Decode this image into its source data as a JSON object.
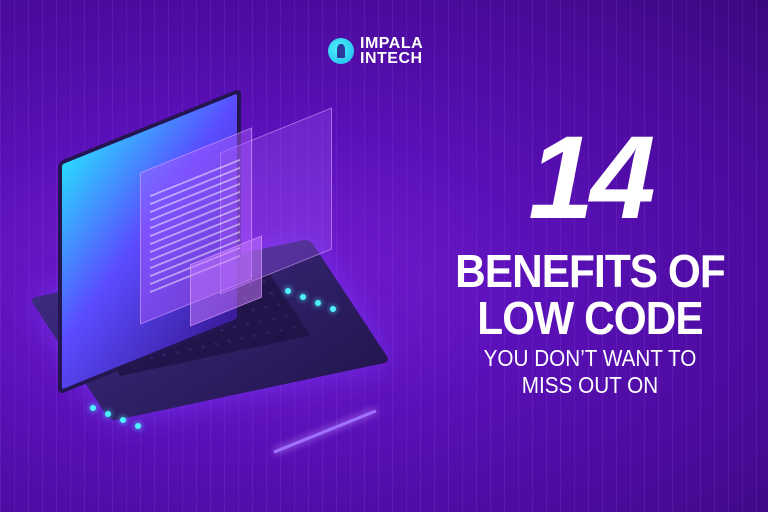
{
  "logo": {
    "line1": "IMPALA",
    "line2": "INTECH",
    "icon": "impala-head-icon",
    "accent": "#2fd6f5"
  },
  "headline": {
    "number": "14",
    "line1": "BENEFITS OF",
    "line2": "LOW CODE",
    "sub1": "YOU DON’T WANT TO",
    "sub2": "MISS OUT ON"
  },
  "colors": {
    "background": "#5a10b8",
    "text": "#ffffff"
  }
}
